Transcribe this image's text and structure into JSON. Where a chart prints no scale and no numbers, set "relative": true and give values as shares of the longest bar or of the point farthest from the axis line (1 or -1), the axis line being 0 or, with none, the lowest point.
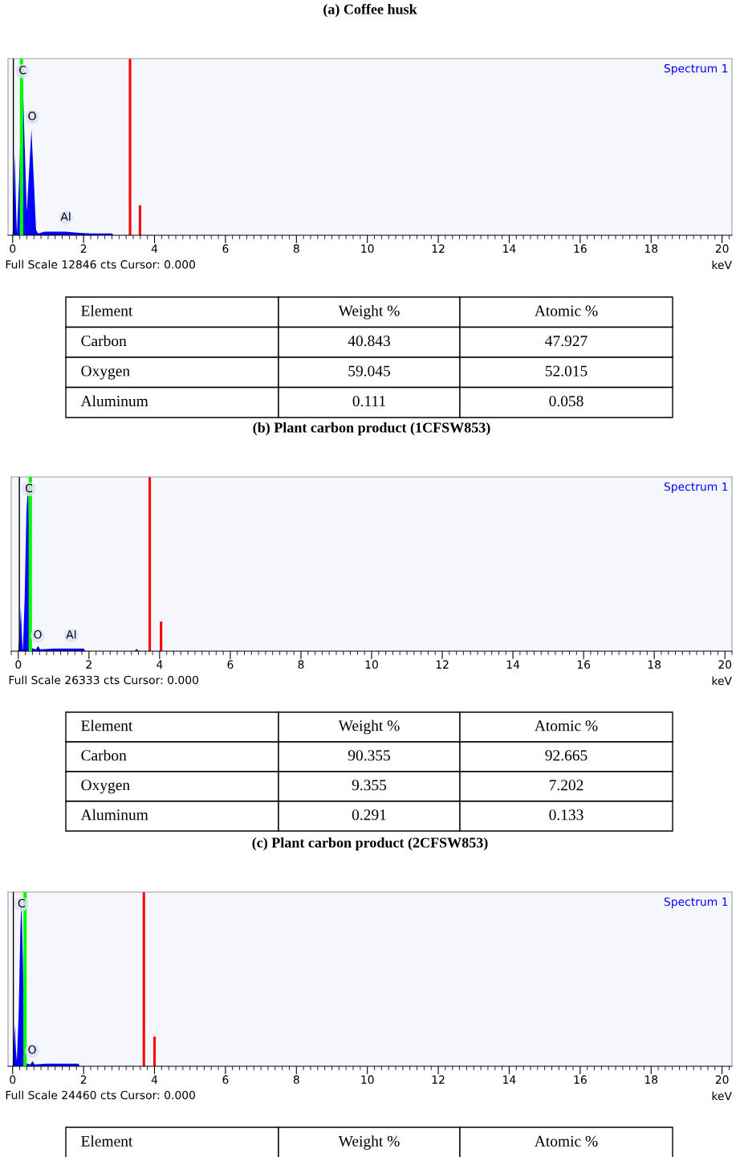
{
  "chart_data": [
    {
      "type": "area",
      "title": "(a) Coffee husk",
      "xlabel": "keV",
      "relative": true,
      "tick_labels": "x",
      "grid": false,
      "xlim": [
        -0.13,
        20.28
      ],
      "xticks": [
        0,
        2,
        4,
        6,
        8,
        10,
        12,
        14,
        16,
        18,
        20
      ],
      "series": [
        {
          "type": "area",
          "color": "#0000ff",
          "x": [
            0,
            0.03,
            0.06,
            0.09,
            0.12,
            0.18,
            0.24,
            0.29,
            0.34,
            0.4,
            0.46,
            0.53,
            0.6,
            0.66,
            0.72,
            0.9,
            1.2,
            1.5,
            1.8,
            2.2,
            2.6,
            2.8,
            2.85
          ],
          "values": [
            0,
            0.2,
            0.46,
            0.2,
            0.01,
            0.3,
            0.7,
            0.85,
            0.5,
            0.13,
            0.35,
            0.6,
            0.3,
            0.03,
            0.01,
            0.02,
            0.02,
            0.02,
            0.015,
            0.01,
            0.01,
            0.01,
            0
          ]
        },
        {
          "type": "bar",
          "color": "#ff0000",
          "x": [
            3.31,
            3.59
          ],
          "values": [
            1.0,
            0.17
          ]
        }
      ],
      "ref_lines": [
        {
          "axis": "x",
          "value": 0.02,
          "color": "#000000"
        },
        {
          "axis": "x",
          "value": 0.25,
          "color": "#00ff00"
        }
      ],
      "annotations": [
        {
          "text": "C",
          "x": 0.28,
          "y": 0.93
        },
        {
          "text": "O",
          "x": 0.55,
          "y": 0.67
        },
        {
          "text": "Al",
          "x": 1.5,
          "y": 0.1
        },
        "Spectrum 1",
        "Full Scale 12846 cts Cursor: 0.000"
      ]
    },
    {
      "type": "other",
      "categories": [
        "Element",
        "Weight %",
        "Atomic %"
      ],
      "y_categories": [
        "Carbon",
        "Oxygen",
        "Aluminum"
      ],
      "cell_labels": [
        [
          "40.843",
          "47.927"
        ],
        [
          "59.045",
          "52.015"
        ],
        [
          "0.111",
          "0.058"
        ]
      ]
    },
    {
      "type": "area",
      "title": "(b) Plant carbon product (1CFSW853)",
      "xlabel": "keV",
      "relative": true,
      "tick_labels": "x",
      "grid": false,
      "xlim": [
        -0.2,
        20.2
      ],
      "xticks": [
        0,
        2,
        4,
        6,
        8,
        10,
        12,
        14,
        16,
        18,
        20
      ],
      "series": [
        {
          "type": "area",
          "color": "#0000ff",
          "x": [
            0,
            0.04,
            0.07,
            0.1,
            0.13,
            0.18,
            0.23,
            0.28,
            0.31,
            0.34,
            0.5,
            0.56,
            0.62,
            1.0,
            1.85,
            1.9,
            3.3,
            3.35,
            3.4
          ],
          "values": [
            0,
            0.1,
            0.25,
            0.1,
            0,
            0.3,
            0.8,
            0.97,
            0.6,
            0.02,
            0.01,
            0.03,
            0.01,
            0.015,
            0.015,
            0,
            0,
            0.015,
            0
          ]
        },
        {
          "type": "bar",
          "color": "#ff0000",
          "x": [
            3.72,
            4.04
          ],
          "values": [
            1.0,
            0.17
          ]
        }
      ],
      "ref_lines": [
        {
          "axis": "x",
          "value": 0.03,
          "color": "#000000"
        },
        {
          "axis": "x",
          "value": 0.34,
          "color": "#00ff00"
        }
      ],
      "annotations": [
        {
          "text": "C",
          "x": 0.3,
          "y": 0.93
        },
        {
          "text": "O",
          "x": 0.55,
          "y": 0.09
        },
        {
          "text": "Al",
          "x": 1.5,
          "y": 0.09
        },
        "Spectrum 1",
        "Full Scale 26333 cts Cursor: 0.000"
      ]
    },
    {
      "type": "other",
      "categories": [
        "Element",
        "Weight %",
        "Atomic %"
      ],
      "y_categories": [
        "Carbon",
        "Oxygen",
        "Aluminum"
      ],
      "cell_labels": [
        [
          "90.355",
          "92.665"
        ],
        [
          "9.355",
          "7.202"
        ],
        [
          "0.291",
          "0.133"
        ]
      ]
    },
    {
      "type": "area",
      "title": "(c) Plant carbon product (2CFSW853)",
      "xlabel": "keV",
      "relative": true,
      "tick_labels": "x",
      "grid": false,
      "xlim": [
        -0.13,
        20.28
      ],
      "xticks": [
        0,
        2,
        4,
        6,
        8,
        10,
        12,
        14,
        16,
        18,
        20
      ],
      "series": [
        {
          "type": "area",
          "color": "#0000ff",
          "x": [
            0,
            0.03,
            0.06,
            0.09,
            0.12,
            0.17,
            0.22,
            0.25,
            0.29,
            0.33,
            0.5,
            0.56,
            0.62,
            0.95,
            1.85,
            1.9
          ],
          "values": [
            0,
            0.1,
            0.24,
            0.1,
            0.03,
            0.3,
            0.8,
            0.95,
            0.6,
            0.02,
            0.01,
            0.03,
            0.01,
            0.015,
            0.015,
            0
          ]
        },
        {
          "type": "bar",
          "color": "#ff0000",
          "x": [
            3.7,
            4.0
          ],
          "values": [
            1.0,
            0.17
          ]
        }
      ],
      "ref_lines": [
        {
          "axis": "x",
          "value": 0.02,
          "color": "#000000"
        },
        {
          "axis": "x",
          "value": 0.35,
          "color": "#00ff00"
        }
      ],
      "annotations": [
        {
          "text": "C",
          "x": 0.25,
          "y": 0.93
        },
        {
          "text": "O",
          "x": 0.55,
          "y": 0.09
        },
        "Spectrum 1",
        "Full Scale 24460 cts Cursor: 0.000"
      ]
    },
    {
      "type": "other",
      "categories": [
        "Element",
        "Weight %",
        "Atomic %"
      ]
    }
  ]
}
